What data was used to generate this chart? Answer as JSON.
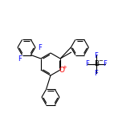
{
  "bg_color": "#ffffff",
  "bond_color": "#000000",
  "atom_colors": {
    "O": "#ff0000",
    "F": "#33ccff",
    "B": "#000000",
    "Fring": "#0000ff"
  },
  "figsize": [
    1.52,
    1.52
  ],
  "dpi": 100,
  "lw": 0.8,
  "fontsize": 6.0,
  "ring_r": 14,
  "small_r": 12
}
